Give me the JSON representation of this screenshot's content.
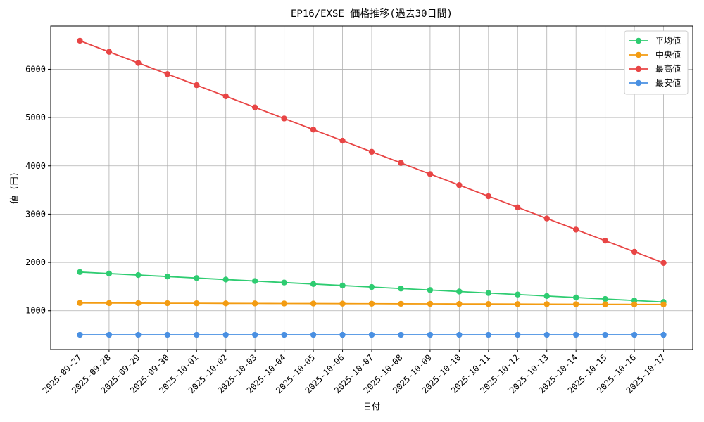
{
  "chart_data": {
    "type": "line",
    "title": "EP16/EXSE 価格推移(過去30日間)",
    "x_label": "日付",
    "y_label": "値 (円)",
    "categories": [
      "2025-09-27",
      "2025-09-28",
      "2025-09-29",
      "2025-09-30",
      "2025-10-01",
      "2025-10-02",
      "2025-10-03",
      "2025-10-04",
      "2025-10-05",
      "2025-10-06",
      "2025-10-07",
      "2025-10-08",
      "2025-10-09",
      "2025-10-10",
      "2025-10-11",
      "2025-10-12",
      "2025-10-13",
      "2025-10-14",
      "2025-10-15",
      "2025-10-16",
      "2025-10-17"
    ],
    "series": [
      {
        "name": "平均値",
        "color": "#2ecc71",
        "values": [
          1800,
          1769,
          1738,
          1707,
          1676,
          1645,
          1614,
          1583,
          1552,
          1521,
          1490,
          1459,
          1428,
          1397,
          1366,
          1335,
          1304,
          1273,
          1242,
          1211,
          1180
        ]
      },
      {
        "name": "中央値",
        "color": "#f39c12",
        "values": [
          1160,
          1158,
          1157,
          1155,
          1154,
          1152,
          1151,
          1149,
          1148,
          1146,
          1145,
          1143,
          1142,
          1140,
          1139,
          1137,
          1136,
          1134,
          1133,
          1131,
          1130
        ]
      },
      {
        "name": "最高値",
        "color": "#e84545",
        "values": [
          6590,
          6360,
          6130,
          5900,
          5670,
          5440,
          5210,
          4980,
          4750,
          4520,
          4290,
          4060,
          3830,
          3600,
          3370,
          3140,
          2910,
          2680,
          2450,
          2220,
          1990
        ]
      },
      {
        "name": "最安値",
        "color": "#4a90e2",
        "values": [
          500,
          500,
          500,
          500,
          500,
          500,
          500,
          500,
          500,
          500,
          500,
          500,
          500,
          500,
          500,
          500,
          500,
          500,
          500,
          500,
          500
        ]
      }
    ],
    "ylim": [
      195,
      6895
    ],
    "yticks": [
      1000,
      2000,
      3000,
      4000,
      5000,
      6000
    ],
    "grid": true,
    "legend": "upper right"
  }
}
